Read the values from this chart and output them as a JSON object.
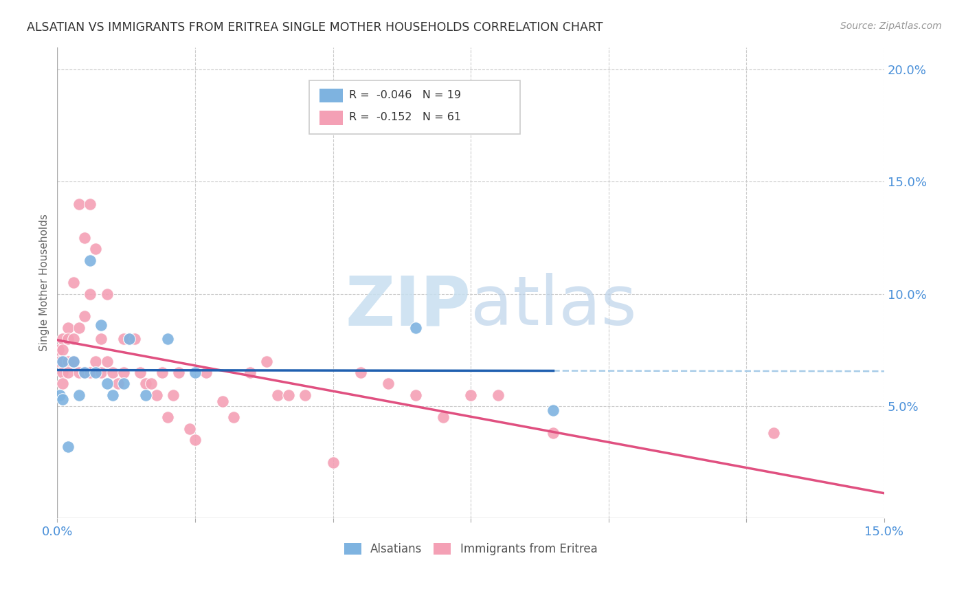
{
  "title": "ALSATIAN VS IMMIGRANTS FROM ERITREA SINGLE MOTHER HOUSEHOLDS CORRELATION CHART",
  "source": "Source: ZipAtlas.com",
  "ylabel": "Single Mother Households",
  "xlim": [
    0.0,
    0.15
  ],
  "ylim": [
    0.0,
    0.21
  ],
  "alsatian_R": -0.046,
  "alsatian_N": 19,
  "eritrea_R": -0.152,
  "eritrea_N": 61,
  "alsatian_color": "#7eb3e0",
  "eritrea_color": "#f4a0b5",
  "alsatian_line_color": "#2060b0",
  "eritrea_line_color": "#e05080",
  "background_color": "#ffffff",
  "watermark_color": "#ddeeff",
  "alsatian_x": [
    0.0005,
    0.001,
    0.001,
    0.002,
    0.003,
    0.004,
    0.005,
    0.006,
    0.007,
    0.008,
    0.009,
    0.01,
    0.012,
    0.013,
    0.016,
    0.02,
    0.025,
    0.065,
    0.09
  ],
  "alsatian_y": [
    0.055,
    0.07,
    0.053,
    0.032,
    0.07,
    0.055,
    0.065,
    0.115,
    0.065,
    0.086,
    0.06,
    0.055,
    0.06,
    0.08,
    0.055,
    0.08,
    0.065,
    0.085,
    0.048
  ],
  "eritrea_x": [
    0.0002,
    0.0005,
    0.001,
    0.001,
    0.001,
    0.001,
    0.002,
    0.002,
    0.002,
    0.002,
    0.003,
    0.003,
    0.003,
    0.004,
    0.004,
    0.004,
    0.005,
    0.005,
    0.005,
    0.006,
    0.006,
    0.006,
    0.007,
    0.007,
    0.008,
    0.008,
    0.009,
    0.009,
    0.01,
    0.011,
    0.012,
    0.012,
    0.013,
    0.014,
    0.015,
    0.016,
    0.017,
    0.018,
    0.019,
    0.02,
    0.021,
    0.022,
    0.024,
    0.025,
    0.027,
    0.03,
    0.032,
    0.035,
    0.038,
    0.04,
    0.042,
    0.045,
    0.05,
    0.055,
    0.06,
    0.065,
    0.07,
    0.075,
    0.08,
    0.09,
    0.13
  ],
  "eritrea_y": [
    0.075,
    0.07,
    0.08,
    0.075,
    0.065,
    0.06,
    0.085,
    0.08,
    0.07,
    0.065,
    0.105,
    0.08,
    0.07,
    0.14,
    0.085,
    0.065,
    0.125,
    0.09,
    0.065,
    0.14,
    0.1,
    0.065,
    0.12,
    0.07,
    0.08,
    0.065,
    0.1,
    0.07,
    0.065,
    0.06,
    0.08,
    0.065,
    0.08,
    0.08,
    0.065,
    0.06,
    0.06,
    0.055,
    0.065,
    0.045,
    0.055,
    0.065,
    0.04,
    0.035,
    0.065,
    0.052,
    0.045,
    0.065,
    0.07,
    0.055,
    0.055,
    0.055,
    0.025,
    0.065,
    0.06,
    0.055,
    0.045,
    0.055,
    0.055,
    0.038,
    0.038
  ]
}
